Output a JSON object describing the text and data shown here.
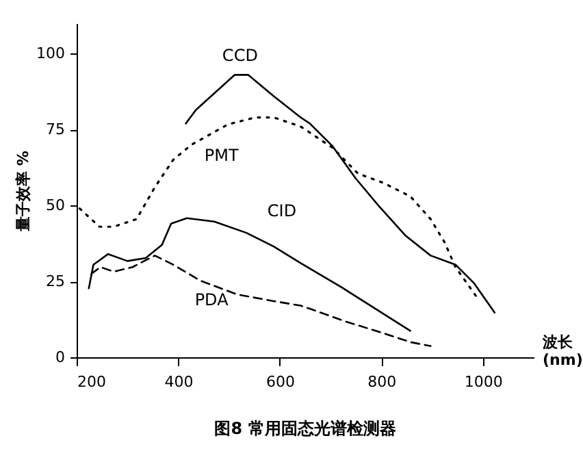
{
  "chart_data": {
    "type": "line",
    "title": "图8  常用固态光谱检测器",
    "xlabel": "波长 (nm)",
    "ylabel": "量子效率 %",
    "xlim": [
      200,
      1100
    ],
    "xticks": [
      200,
      400,
      600,
      800,
      1000
    ],
    "ylim": [
      0,
      110
    ],
    "yticks": [
      0,
      25,
      50,
      75,
      100
    ],
    "grid": false,
    "marker": "none",
    "series": [
      {
        "name": "CCD",
        "color": "#000000",
        "line_style": "solid",
        "x": [
          415,
          435,
          511,
          538,
          588,
          641,
          659,
          704,
          749,
          794,
          848,
          897,
          946,
          982,
          1023
        ],
        "values": [
          77,
          81.5,
          93,
          93,
          86,
          79,
          77,
          69.5,
          59,
          50,
          40,
          33.5,
          30.5,
          24.5,
          14.7
        ]
      },
      {
        "name": "PMT",
        "color": "#000000",
        "line_style": "dotted",
        "x": [
          206,
          245,
          273,
          318,
          354,
          390,
          426,
          498,
          552,
          588,
          641,
          704,
          754,
          803,
          857,
          897,
          924,
          946,
          987
        ],
        "values": [
          49,
          43,
          43,
          45.5,
          56,
          65,
          70,
          76.7,
          79,
          79,
          76,
          69,
          60.5,
          57.5,
          53,
          45.5,
          38,
          29.7,
          20
        ]
      },
      {
        "name": "CID",
        "color": "#000000",
        "line_style": "solid",
        "x": [
          224,
          233,
          262,
          300,
          336,
          368,
          386,
          417,
          471,
          534,
          588,
          641,
          722,
          857
        ],
        "values": [
          22.7,
          30.5,
          34,
          31.7,
          32.7,
          37,
          44,
          45.8,
          44.7,
          41,
          36.5,
          31,
          23,
          8.7
        ]
      },
      {
        "name": "PDA",
        "color": "#000000",
        "line_style": "dashed",
        "x": [
          229,
          247,
          273,
          310,
          354,
          390,
          444,
          516,
          588,
          641,
          659,
          731,
          803,
          857,
          897
        ],
        "values": [
          27.5,
          29.7,
          28.2,
          29.7,
          33.5,
          30.5,
          25.2,
          20.7,
          18.5,
          17,
          16,
          11.7,
          8,
          5,
          3.7
        ]
      }
    ]
  }
}
